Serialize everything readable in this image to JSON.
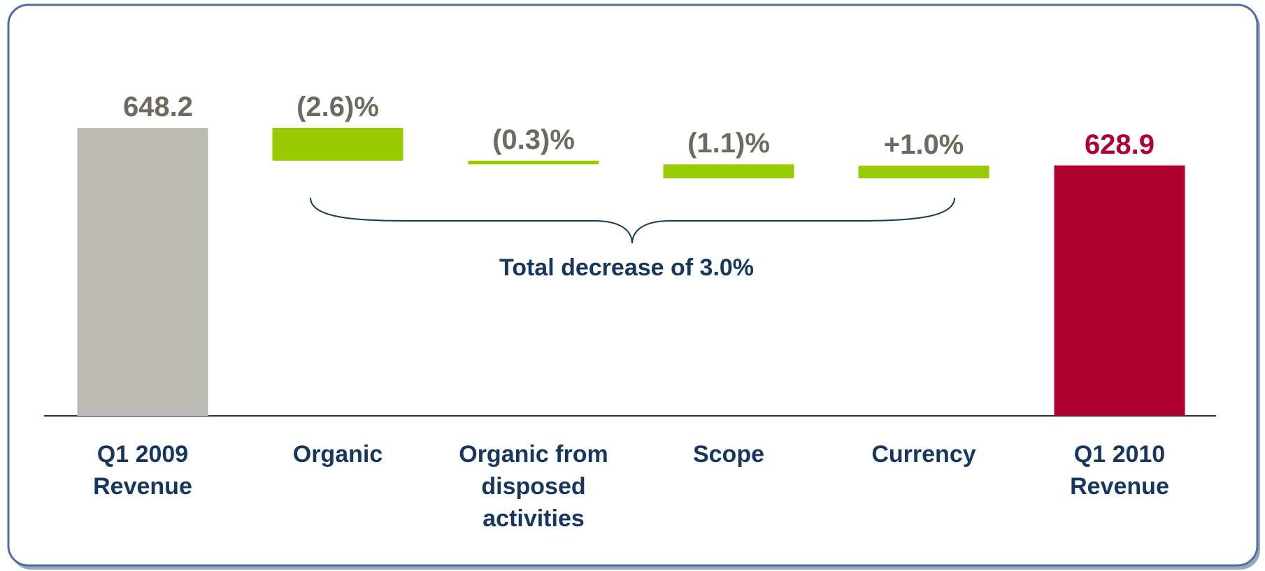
{
  "chart_data": {
    "type": "waterfall",
    "categories": [
      "Q1 2009 Revenue",
      "Organic",
      "Organic from disposed activities",
      "Scope",
      "Currency",
      "Q1 2010 Revenue"
    ],
    "measures": [
      "absolute",
      "percent",
      "percent",
      "percent",
      "percent",
      "absolute"
    ],
    "values": [
      648.2,
      -2.6,
      -0.3,
      -1.1,
      1.0,
      628.9
    ],
    "value_labels": [
      "648.2",
      "(2.6)%",
      "(0.3)%",
      "(1.1)%",
      "+1.0%",
      "628.9"
    ],
    "colors": [
      "#bcbbb3",
      "#99cc00",
      "#99cc00",
      "#99cc00",
      "#99cc00",
      "#b0002f"
    ],
    "label_colors": [
      "#6d6a5f",
      "#6d6a5f",
      "#6d6a5f",
      "#6d6a5f",
      "#6d6a5f",
      "#b0002f"
    ],
    "ylim": [
      500,
      700
    ],
    "annotation": "Total decrease of 3.0%"
  }
}
